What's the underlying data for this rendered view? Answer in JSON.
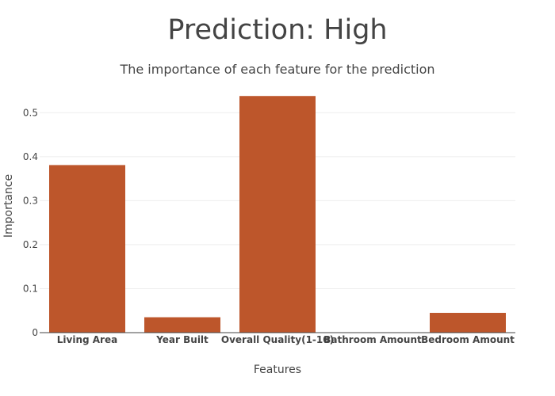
{
  "chart_data": {
    "type": "bar",
    "title": "Prediction: High",
    "subtitle": "The importance of each feature for the prediction",
    "xlabel": "Features",
    "ylabel": "Importance",
    "categories": [
      "Living Area",
      "Year Built",
      "Overall Quality(1-10)",
      "Bathroom Amount",
      "Bedroom Amount"
    ],
    "values": [
      0.381,
      0.035,
      0.538,
      0.0,
      0.045
    ],
    "ylim": [
      0,
      0.56
    ],
    "yticks": [
      0,
      0.1,
      0.2,
      0.3,
      0.4,
      0.5
    ],
    "ytick_labels": [
      "0",
      "0.1",
      "0.2",
      "0.3",
      "0.4",
      "0.5"
    ],
    "grid": true,
    "bar_color": "#bd562b"
  }
}
